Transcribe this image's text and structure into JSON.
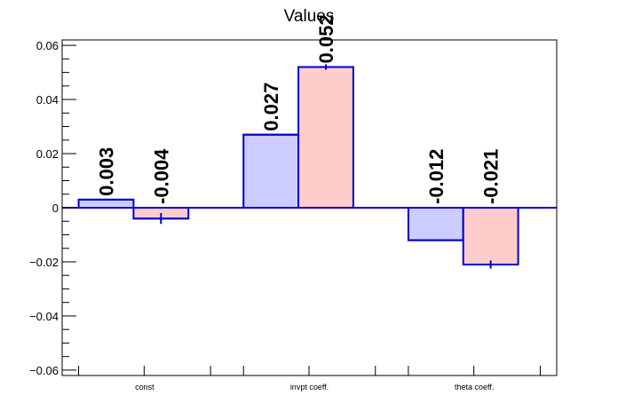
{
  "chart_data": {
    "type": "bar",
    "title": "Values",
    "xlabel": "",
    "ylabel": "",
    "categories": [
      "const",
      "invpt coeff.",
      "theta coeff."
    ],
    "ylim": [
      -0.062,
      0.062
    ],
    "yticks": [
      -0.06,
      -0.04,
      -0.02,
      0,
      0.02,
      0.04,
      0.06
    ],
    "ytick_labels": [
      "−0.06",
      "−0.04",
      "−0.02",
      "0",
      "0.02",
      "0.04",
      "0.06"
    ],
    "grid": false,
    "legend": "none",
    "series": [
      {
        "values": [
          0.003,
          0.027,
          -0.012
        ],
        "labels": [
          "0.003",
          "0.027",
          "-0.012"
        ],
        "errors": [
          0,
          0,
          0
        ],
        "fill": "#ccccff",
        "stroke": "#0000cc"
      },
      {
        "values": [
          -0.004,
          0.052,
          -0.021
        ],
        "labels": [
          "-0.004",
          "0.052",
          "-0.021"
        ],
        "errors": [
          0.002,
          0.001,
          0.0015
        ],
        "fill": "#ffcccc",
        "stroke": "#0000cc"
      }
    ]
  }
}
